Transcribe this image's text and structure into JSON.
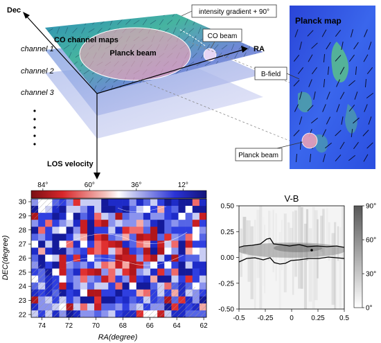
{
  "schematic": {
    "axis_dec": "Dec",
    "axis_ra": "RA",
    "axis_los": "LOS velocity",
    "title": "CO channel maps",
    "channels": [
      "channel 1",
      "channel 2",
      "channel 3"
    ],
    "planck_beam_label": "Planck beam",
    "callout_gradient": "intensity gradient + 90°",
    "callout_co_beam": "CO beam"
  },
  "planck_panel": {
    "title": "Planck map",
    "callout_bfield": "B-field",
    "callout_beam": "Planck beam"
  },
  "colors": {
    "planck_blue": "#2f56e6",
    "planck_green": "#58c27a",
    "map_blue": "#1f2fd0",
    "map_red": "#d8262a",
    "contour": "#000000"
  },
  "chart_data": [
    {
      "type": "heatmap",
      "title": "",
      "xlabel": "RA(degree)",
      "ylabel": "DEC(degree)",
      "xlim": [
        74.8,
        61.8
      ],
      "ylim": [
        21.8,
        30.2
      ],
      "xticks": [
        "74",
        "72",
        "70",
        "68",
        "66",
        "64",
        "62"
      ],
      "yticks": [
        "22",
        "23",
        "24",
        "25",
        "26",
        "27",
        "28",
        "29",
        "30"
      ],
      "colorbar": {
        "position": "top",
        "ticks": [
          "84°",
          "60°",
          "36°",
          "12°"
        ],
        "tick_values": [
          84,
          60,
          36,
          12
        ],
        "range": [
          90,
          0
        ]
      },
      "hatched_regions": [
        "upper-left corner",
        "lower-left",
        "lower-right"
      ]
    },
    {
      "type": "heatmap",
      "title": "V-B",
      "xlabel": "",
      "ylabel": "",
      "xlim": [
        -0.5,
        0.5
      ],
      "ylim": [
        -0.5,
        0.5
      ],
      "xticks": [
        "-0.5",
        "-0.25",
        "0",
        "0.25",
        "0.5"
      ],
      "yticks": [
        "-0.50",
        "-0.25",
        "0.00",
        "0.25",
        "0.50"
      ],
      "colorbar": {
        "position": "right",
        "ticks": [
          "0°",
          "30°",
          "60°",
          "90°"
        ],
        "tick_values": [
          0,
          30,
          60,
          90
        ],
        "range": [
          0,
          90
        ]
      }
    }
  ]
}
